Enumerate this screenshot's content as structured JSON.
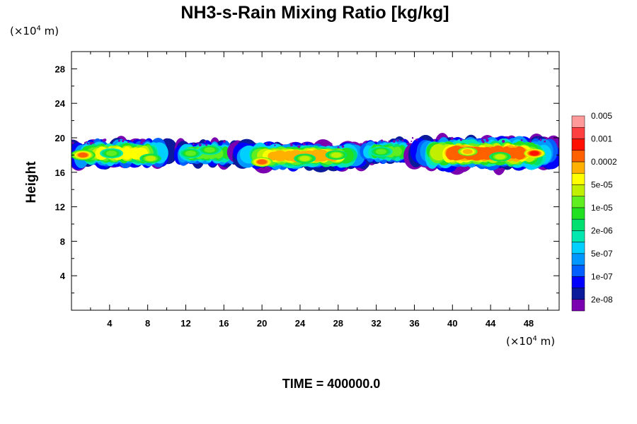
{
  "chart_data": {
    "type": "heatmap",
    "title": "NH3-s-Rain Mixing Ratio [kg/kg]",
    "xlabel": "",
    "ylabel": "Height",
    "x_unit": {
      "prefix": "(×10",
      "exp": "4",
      "suffix": " m)"
    },
    "y_unit": {
      "prefix": "(×10",
      "exp": "4",
      "suffix": " m)"
    },
    "xlim": [
      0,
      51.2
    ],
    "ylim": [
      0,
      30
    ],
    "x_ticks": [
      4,
      8,
      12,
      16,
      20,
      24,
      28,
      32,
      36,
      40,
      44,
      48
    ],
    "y_ticks": [
      4,
      8,
      12,
      16,
      20,
      24,
      28
    ],
    "grid": false,
    "legend_placement": "right",
    "colorbar": {
      "colors": [
        "#7a00b0",
        "#0a1a9a",
        "#0000ff",
        "#0060ff",
        "#0098ff",
        "#00d0ff",
        "#00e8b0",
        "#00e070",
        "#20e020",
        "#60ee20",
        "#c0f000",
        "#ffff00",
        "#ffb000",
        "#ff6000",
        "#ff1000",
        "#ff4040",
        "#ff9a9a"
      ],
      "labels": [
        "2e-08",
        "1e-07",
        "5e-07",
        "2e-06",
        "1e-05",
        "5e-05",
        "0.0002",
        "0.001",
        "0.005"
      ],
      "label_levels": [
        1,
        3,
        5,
        7,
        9,
        11,
        13,
        15,
        17
      ]
    },
    "bands": [
      {
        "x0": 0.0,
        "x1": 10.5,
        "y0": 16.6,
        "y1": 19.8,
        "level": 12,
        "peaks": [
          [
            1.2,
            18.0,
            14
          ],
          [
            4.2,
            18.2,
            10
          ],
          [
            8.3,
            17.6,
            11
          ]
        ]
      },
      {
        "x0": 11.0,
        "x1": 17.4,
        "y0": 16.8,
        "y1": 19.6,
        "level": 10,
        "peaks": [
          [
            12.5,
            18.2,
            10
          ],
          [
            14.5,
            18.6,
            10
          ]
        ]
      },
      {
        "x0": 17.2,
        "x1": 31.2,
        "y0": 16.4,
        "y1": 19.4,
        "level": 13,
        "peaks": [
          [
            20.0,
            17.2,
            14
          ],
          [
            24.5,
            17.6,
            11
          ],
          [
            27.8,
            18.0,
            11
          ]
        ]
      },
      {
        "x0": 30.6,
        "x1": 35.6,
        "y0": 17.0,
        "y1": 19.8,
        "level": 10,
        "peaks": [
          [
            32.5,
            18.4,
            10
          ]
        ]
      },
      {
        "x0": 35.6,
        "x1": 51.2,
        "y0": 16.4,
        "y1": 20.0,
        "level": 14,
        "peaks": [
          [
            41.6,
            18.4,
            13
          ],
          [
            48.6,
            18.2,
            15
          ],
          [
            45.0,
            17.8,
            11
          ]
        ]
      }
    ]
  },
  "time_label": "TIME = 400000.0"
}
